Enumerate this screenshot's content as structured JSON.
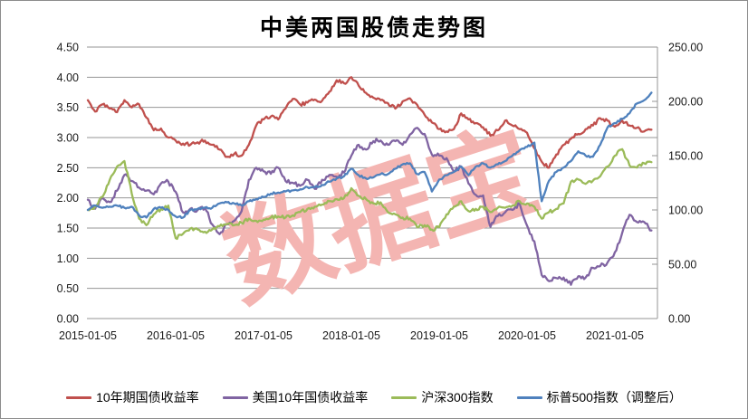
{
  "watermark": "数据宝",
  "watermark_color": "#F4B5B2",
  "grid_color": "#969696",
  "axis_text_color": "#1a1a1a",
  "chart_data": {
    "type": "line",
    "title": "中美两国股债走势图",
    "grid": true,
    "legend_position": "bottom",
    "x_tick_labels": [
      "2015-01-05",
      "2016-01-05",
      "2017-01-05",
      "2018-01-05",
      "2019-01-05",
      "2020-01-05",
      "2021-01-05"
    ],
    "left_axis": {
      "min": 0,
      "max": 4.5,
      "step": 0.5,
      "tick_labels": [
        "0.00",
        "0.50",
        "1.00",
        "1.50",
        "2.00",
        "2.50",
        "3.00",
        "3.50",
        "4.00",
        "4.50"
      ]
    },
    "right_axis": {
      "min": 0,
      "max": 250,
      "step": 50,
      "tick_labels": [
        "0.00",
        "50.00",
        "100.00",
        "150.00",
        "200.00",
        "250.00"
      ]
    },
    "months": [
      "2015-01",
      "2015-02",
      "2015-03",
      "2015-04",
      "2015-05",
      "2015-06",
      "2015-07",
      "2015-08",
      "2015-09",
      "2015-10",
      "2015-11",
      "2015-12",
      "2016-01",
      "2016-02",
      "2016-03",
      "2016-04",
      "2016-05",
      "2016-06",
      "2016-07",
      "2016-08",
      "2016-09",
      "2016-10",
      "2016-11",
      "2016-12",
      "2017-01",
      "2017-02",
      "2017-03",
      "2017-04",
      "2017-05",
      "2017-06",
      "2017-07",
      "2017-08",
      "2017-09",
      "2017-10",
      "2017-11",
      "2017-12",
      "2018-01",
      "2018-02",
      "2018-03",
      "2018-04",
      "2018-05",
      "2018-06",
      "2018-07",
      "2018-08",
      "2018-09",
      "2018-10",
      "2018-11",
      "2018-12",
      "2019-01",
      "2019-02",
      "2019-03",
      "2019-04",
      "2019-05",
      "2019-06",
      "2019-07",
      "2019-08",
      "2019-09",
      "2019-10",
      "2019-11",
      "2019-12",
      "2020-01",
      "2020-02",
      "2020-03",
      "2020-04",
      "2020-05",
      "2020-06",
      "2020-07",
      "2020-08",
      "2020-09",
      "2020-10",
      "2020-11",
      "2020-12",
      "2021-01",
      "2021-02",
      "2021-03",
      "2021-04",
      "2021-05",
      "2021-06"
    ],
    "series": [
      {
        "name": "10年期国债收益率",
        "axis": "left",
        "color": "#C0504D",
        "jitter": 0.03,
        "values": [
          3.62,
          3.43,
          3.55,
          3.48,
          3.42,
          3.62,
          3.5,
          3.55,
          3.33,
          3.12,
          3.15,
          3.0,
          2.95,
          2.9,
          2.88,
          2.92,
          2.95,
          2.88,
          2.8,
          2.68,
          2.73,
          2.7,
          2.88,
          3.2,
          3.3,
          3.35,
          3.3,
          3.48,
          3.64,
          3.55,
          3.58,
          3.63,
          3.61,
          3.76,
          3.95,
          3.9,
          4.0,
          3.86,
          3.74,
          3.66,
          3.62,
          3.57,
          3.48,
          3.6,
          3.65,
          3.54,
          3.38,
          3.25,
          3.14,
          3.1,
          3.14,
          3.4,
          3.3,
          3.24,
          3.17,
          3.03,
          3.12,
          3.28,
          3.2,
          3.14,
          3.08,
          2.82,
          2.6,
          2.5,
          2.72,
          2.88,
          2.98,
          3.06,
          3.14,
          3.2,
          3.32,
          3.28,
          3.18,
          3.28,
          3.2,
          3.16,
          3.1,
          3.13
        ]
      },
      {
        "name": "美国10年国债收益率",
        "axis": "left",
        "color": "#8064A2",
        "jitter": 0.035,
        "values": [
          1.97,
          1.82,
          2.0,
          1.93,
          2.12,
          2.38,
          2.28,
          2.17,
          2.12,
          2.06,
          2.24,
          2.27,
          2.1,
          1.76,
          1.82,
          1.8,
          1.84,
          1.56,
          1.4,
          1.56,
          1.62,
          1.78,
          2.3,
          2.5,
          2.44,
          2.4,
          2.5,
          2.28,
          2.25,
          2.2,
          2.3,
          2.15,
          2.3,
          2.38,
          2.35,
          2.42,
          2.7,
          2.88,
          2.8,
          2.94,
          2.95,
          2.88,
          2.94,
          2.88,
          3.05,
          3.16,
          3.06,
          2.72,
          2.7,
          2.66,
          2.44,
          2.52,
          2.24,
          2.05,
          2.04,
          1.52,
          1.7,
          1.76,
          1.8,
          1.9,
          1.54,
          1.28,
          0.72,
          0.62,
          0.67,
          0.68,
          0.56,
          0.7,
          0.68,
          0.84,
          0.87,
          0.93,
          1.1,
          1.42,
          1.72,
          1.6,
          1.6,
          1.46
        ]
      },
      {
        "name": "沪深300指数",
        "axis": "right",
        "color": "#9BBB59",
        "jitter": 1.6,
        "values": [
          100,
          103,
          112,
          128,
          140,
          145,
          115,
          92,
          86,
          96,
          101,
          104,
          74,
          78,
          83,
          82,
          80,
          82,
          85,
          87,
          86,
          88,
          92,
          90,
          91,
          93,
          94,
          93,
          95,
          98,
          101,
          103,
          105,
          108,
          110,
          111,
          120,
          113,
          110,
          106,
          107,
          98,
          96,
          93,
          92,
          84,
          86,
          82,
          84,
          96,
          103,
          108,
          99,
          101,
          103,
          98,
          102,
          102,
          104,
          108,
          106,
          103,
          92,
          98,
          101,
          106,
          126,
          128,
          124,
          127,
          131,
          140,
          150,
          156,
          141,
          139,
          143,
          144
        ]
      },
      {
        "name": "标普500指数（调整后）",
        "axis": "right",
        "color": "#4F81BD",
        "jitter": 1.0,
        "values": [
          100,
          104,
          102,
          103,
          104,
          102,
          103,
          95,
          93,
          101,
          102,
          100,
          94,
          93,
          100,
          101,
          102,
          102,
          106,
          107,
          106,
          104,
          108,
          110,
          112,
          115,
          116,
          117,
          118,
          119,
          121,
          121,
          123,
          126,
          129,
          131,
          138,
          132,
          129,
          130,
          133,
          133,
          138,
          142,
          143,
          133,
          135,
          117,
          128,
          132,
          135,
          140,
          132,
          140,
          143,
          139,
          142,
          145,
          150,
          155,
          158,
          162,
          108,
          127,
          135,
          139,
          145,
          154,
          150,
          149,
          160,
          176,
          180,
          184,
          189,
          198,
          201,
          208
        ]
      }
    ]
  }
}
